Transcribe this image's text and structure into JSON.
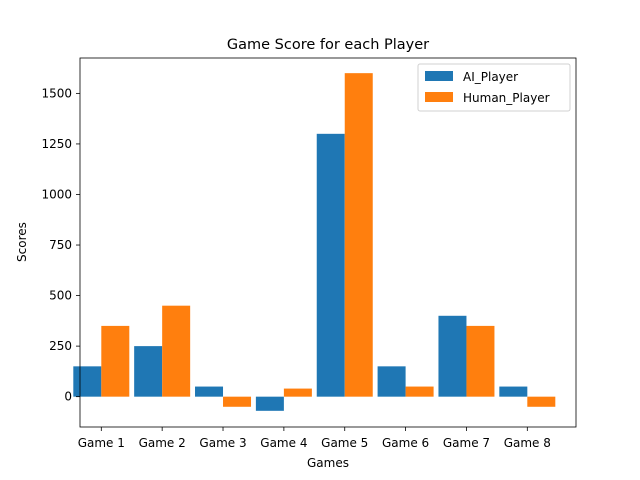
{
  "chart_data": {
    "type": "bar",
    "title": "Game Score for each Player",
    "xlabel": "Games",
    "ylabel": "Scores",
    "categories": [
      "Game 1",
      "Game 2",
      "Game 3",
      "Game 4",
      "Game 5",
      "Game 6",
      "Game 7",
      "Game 8"
    ],
    "series": [
      {
        "name": "AI_Player",
        "color": "#1f77b4",
        "values": [
          150,
          250,
          50,
          -70,
          1300,
          150,
          400,
          50
        ]
      },
      {
        "name": "Human_Player",
        "color": "#ff7f0e",
        "values": [
          350,
          450,
          -50,
          40,
          1600,
          50,
          350,
          -50
        ]
      }
    ],
    "ylim": [
      -150,
      1675
    ],
    "yticks": [
      0,
      250,
      500,
      750,
      1000,
      1250,
      1500
    ],
    "grid": false,
    "legend_position": "top-right"
  }
}
